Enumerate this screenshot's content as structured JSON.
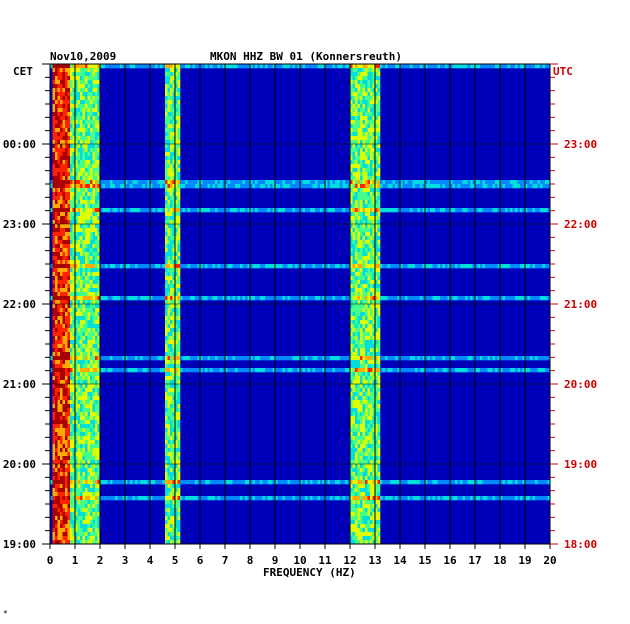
{
  "chart_data": {
    "type": "heatmap",
    "date": "Nov10,2009",
    "title": "MKON HHZ BW 01 (Konnersreuth)",
    "xlabel": "FREQUENCY (HZ)",
    "xlim": [
      0,
      20
    ],
    "x_ticks": [
      "0",
      "1",
      "2",
      "3",
      "4",
      "5",
      "6",
      "7",
      "8",
      "9",
      "10",
      "11",
      "12",
      "13",
      "14",
      "15",
      "16",
      "17",
      "18",
      "19",
      "20"
    ],
    "left_axis_label": "CET",
    "right_axis_label": "UTC",
    "cet_ticks": [
      "00:00",
      "23:00",
      "22:00",
      "21:00",
      "20:00",
      "19:00"
    ],
    "utc_ticks": [
      "23:00",
      "22:00",
      "21:00",
      "20:00",
      "19:00",
      "18:00"
    ],
    "time_range_utc_hours": [
      18,
      24
    ],
    "colorscale": [
      "#000088",
      "#0000cc",
      "#0022ff",
      "#0088ff",
      "#00dddd",
      "#44ff88",
      "#ddff00",
      "#ffaa00",
      "#ff2200",
      "#aa0000"
    ],
    "background_color": "#0000bb",
    "grid": true,
    "energy_bands": [
      {
        "freq": [
          0.1,
          0.8
        ],
        "level": "high"
      },
      {
        "freq": [
          0.8,
          2.0
        ],
        "level": "medium"
      },
      {
        "freq": [
          4.6,
          5.2
        ],
        "level": "medium"
      },
      {
        "freq": [
          12.0,
          13.2
        ],
        "level": "medium"
      }
    ]
  },
  "footer_mark": "*"
}
